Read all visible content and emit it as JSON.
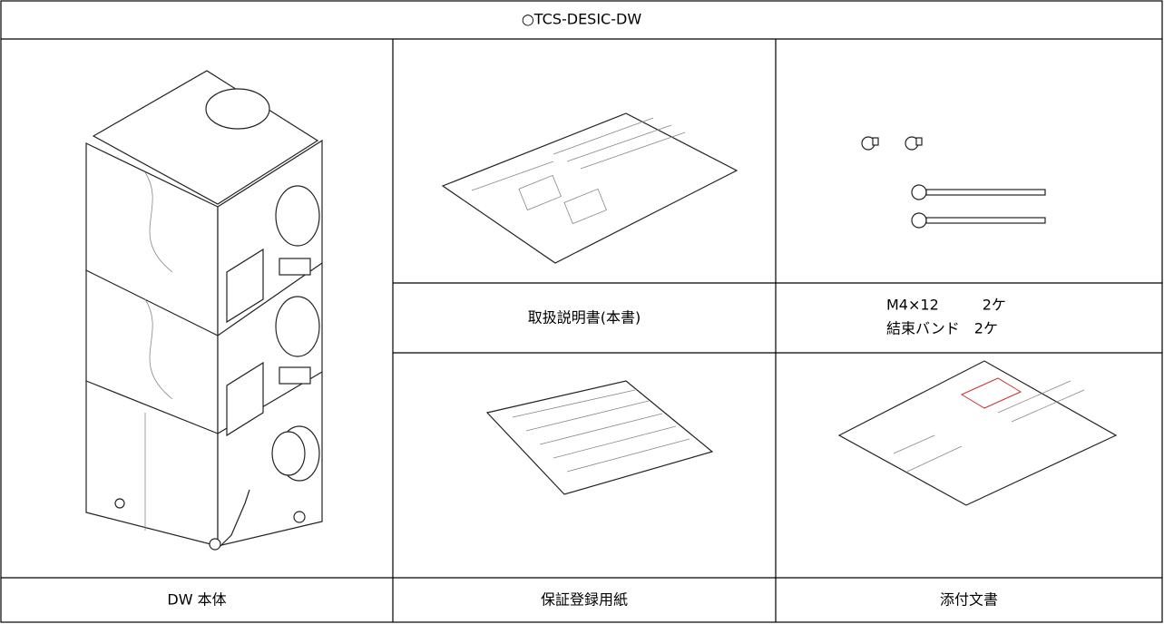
{
  "header": {
    "title": "○TCS-DESIC-DW"
  },
  "cells": {
    "main_unit": "DW 本体",
    "manual": "取扱説明書(本書)",
    "parts": [
      "M4×12　　　2ケ",
      "結束バンド　2ケ"
    ],
    "warranty": "保証登録用紙",
    "attachment": "添付文書"
  }
}
